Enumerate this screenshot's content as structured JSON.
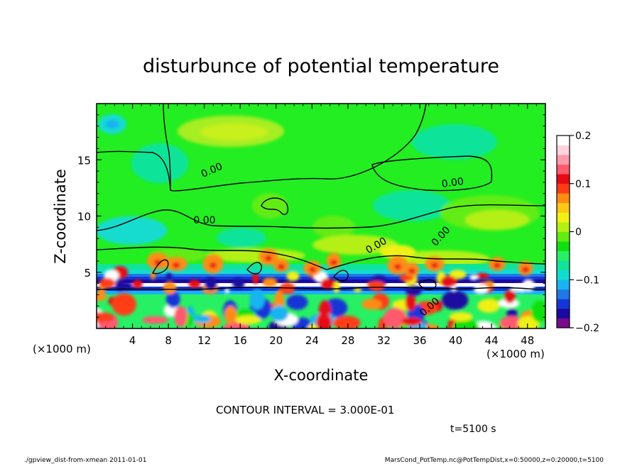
{
  "chart_data": {
    "type": "heatmap",
    "title": "disturbunce of potential temperature",
    "xlabel": "X-coordinate",
    "ylabel": "Z-coordinate",
    "x_unit": "(×1000 m)",
    "y_unit": "(×1000 m)",
    "xlim": [
      0,
      50
    ],
    "ylim": [
      0,
      20
    ],
    "x_ticks": [
      "4",
      "8",
      "12",
      "16",
      "20",
      "24",
      "28",
      "32",
      "36",
      "40",
      "44",
      "48"
    ],
    "y_ticks": [
      "5",
      "10",
      "15"
    ],
    "colorbar": {
      "range": [
        -0.2,
        0.2
      ],
      "tick_labels": [
        "0.2",
        "0.1",
        "0",
        "−0.1",
        "−0.2"
      ],
      "colors": [
        "#7a0a8a",
        "#1a0aa0",
        "#1436d8",
        "#1e78e6",
        "#18b4f0",
        "#12dcd0",
        "#10e49a",
        "#28f064",
        "#10e010",
        "#62ec12",
        "#b4f012",
        "#f0f014",
        "#ffc814",
        "#ff8c14",
        "#ff3c14",
        "#e60a14",
        "#ff5a6e",
        "#ff9aaa",
        "#ffd2dc",
        "#ffffff"
      ]
    },
    "contour_interval": "CONTOUR INTERVAL = 3.000E-01",
    "contour_label": "0.00",
    "time": "t=5100 s"
  },
  "footer": {
    "left": "./gpview_dist-from-xmean  2011-01-01",
    "right": "MarsCond_PotTemp.nc@PotTempDist,x=0:50000,z=0:20000,t=5100"
  }
}
